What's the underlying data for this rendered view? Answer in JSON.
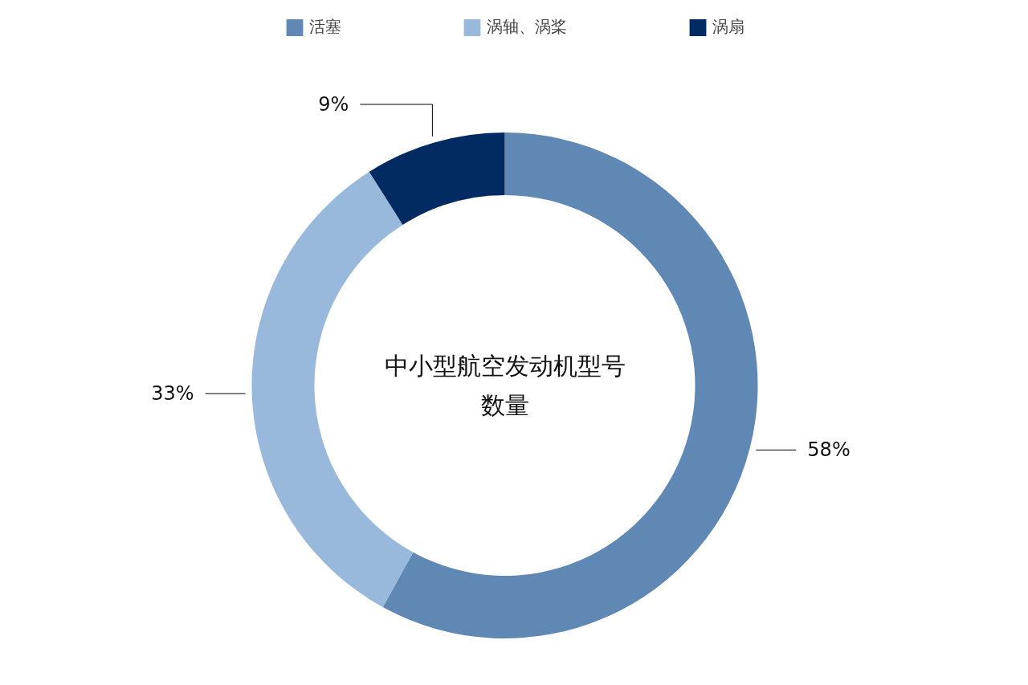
{
  "chart_data": {
    "type": "donut",
    "title": "中小型航空发动机型号数量",
    "categories": [
      "活塞",
      "涡轴、涡桨",
      "涡扇"
    ],
    "values": [
      58,
      33,
      9
    ],
    "colors": [
      "#6088b5",
      "#98b9db",
      "#022b63"
    ],
    "value_labels": [
      "58%",
      "33%",
      "9%"
    ],
    "legend": "top"
  }
}
